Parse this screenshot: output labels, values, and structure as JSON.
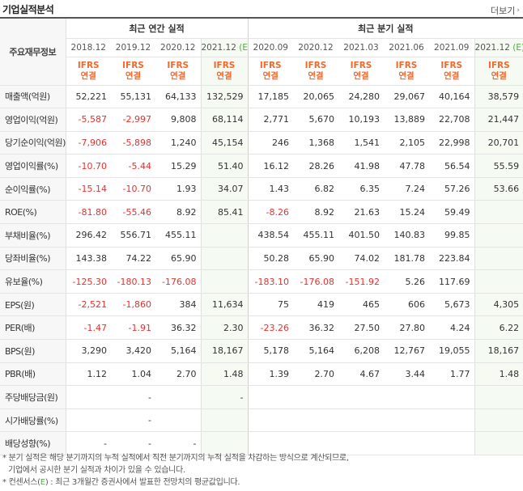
{
  "title": "기업실적분석",
  "more_label": "더보기",
  "header": {
    "corner": "주요재무정보",
    "annual_group": "최근 연간 실적",
    "quarter_group": "최근 분기 실적",
    "annual_periods": [
      "2018.12",
      "2019.12",
      "2020.12",
      "2021.12"
    ],
    "quarter_periods": [
      "2020.09",
      "2020.12",
      "2021.03",
      "2021.06",
      "2021.09",
      "2021.12"
    ],
    "estimate_mark": "(E)",
    "ifrs_line1": "IFRS",
    "ifrs_line2": "연결"
  },
  "rows": [
    {
      "label": "매출액(억원)",
      "values": [
        "52,221",
        "55,131",
        "64,133",
        "132,529",
        "17,185",
        "20,065",
        "24,280",
        "29,067",
        "40,164",
        "38,579"
      ]
    },
    {
      "label": "영업이익(억원)",
      "values": [
        "-5,587",
        "-2,997",
        "9,808",
        "68,114",
        "2,771",
        "5,670",
        "10,193",
        "13,889",
        "22,708",
        "21,447"
      ]
    },
    {
      "label": "당기순이익(억원)",
      "values": [
        "-7,906",
        "-5,898",
        "1,240",
        "45,154",
        "246",
        "1,368",
        "1,541",
        "2,105",
        "22,998",
        "20,701"
      ]
    },
    {
      "label": "영업이익률(%)",
      "values": [
        "-10.70",
        "-5.44",
        "15.29",
        "51.40",
        "16.12",
        "28.26",
        "41.98",
        "47.78",
        "56.54",
        "55.59"
      ]
    },
    {
      "label": "순이익률(%)",
      "values": [
        "-15.14",
        "-10.70",
        "1.93",
        "34.07",
        "1.43",
        "6.82",
        "6.35",
        "7.24",
        "57.26",
        "53.66"
      ]
    },
    {
      "label": "ROE(%)",
      "values": [
        "-81.80",
        "-55.46",
        "8.92",
        "85.41",
        "-8.26",
        "8.92",
        "21.63",
        "15.24",
        "59.49",
        ""
      ]
    },
    {
      "label": "부채비율(%)",
      "values": [
        "296.42",
        "556.71",
        "455.11",
        "",
        "438.54",
        "455.11",
        "401.50",
        "140.83",
        "99.85",
        ""
      ]
    },
    {
      "label": "당좌비율(%)",
      "values": [
        "143.38",
        "74.22",
        "65.90",
        "",
        "50.28",
        "65.90",
        "74.02",
        "181.78",
        "223.84",
        ""
      ]
    },
    {
      "label": "유보율(%)",
      "values": [
        "-125.30",
        "-180.13",
        "-176.08",
        "",
        "-183.10",
        "-176.08",
        "-151.92",
        "5.26",
        "117.69",
        ""
      ]
    },
    {
      "label": "EPS(원)",
      "values": [
        "-2,521",
        "-1,860",
        "384",
        "11,634",
        "75",
        "419",
        "465",
        "606",
        "5,673",
        "4,305"
      ]
    },
    {
      "label": "PER(배)",
      "values": [
        "-1.47",
        "-1.91",
        "36.32",
        "2.30",
        "-23.26",
        "36.32",
        "27.50",
        "27.80",
        "4.24",
        "6.22"
      ]
    },
    {
      "label": "BPS(원)",
      "values": [
        "3,290",
        "3,420",
        "5,164",
        "18,167",
        "5,178",
        "5,164",
        "6,208",
        "12,767",
        "19,055",
        "18,167"
      ]
    },
    {
      "label": "PBR(배)",
      "values": [
        "1.12",
        "1.04",
        "2.70",
        "1.48",
        "1.39",
        "2.70",
        "4.67",
        "3.44",
        "1.77",
        "1.48"
      ]
    },
    {
      "label": "주당배당금(원)",
      "values": [
        "",
        "-",
        "",
        "-",
        "",
        "",
        "",
        "",
        "",
        ""
      ]
    },
    {
      "label": "시가배당률(%)",
      "values": [
        "",
        "-",
        "",
        "",
        "",
        "",
        "",
        "",
        "",
        ""
      ]
    },
    {
      "label": "배당성향(%)",
      "values": [
        "-",
        "-",
        "-",
        "",
        "",
        "",
        "",
        "",
        "",
        ""
      ]
    }
  ],
  "notes": {
    "line1": "* 분기 실적은 해당 분기까지의 누적 실적에서 직전 분기까지의 누적 실적을 차감하는 방식으로 계산되므로,",
    "line2": "기업에서 공시한 분기 실적과 차이가 있을 수 있습니다.",
    "line3_prefix": "* 컨센서스(",
    "line3_mark": "E",
    "line3_suffix": ") : 최근 3개월간 증권사에서 발표한 전망치의 평균값입니다."
  },
  "colors": {
    "negative": "#e8312f",
    "ifrs": "#f2692b",
    "estimate": "#56a744",
    "estimate_bg": "#f5faf3"
  }
}
